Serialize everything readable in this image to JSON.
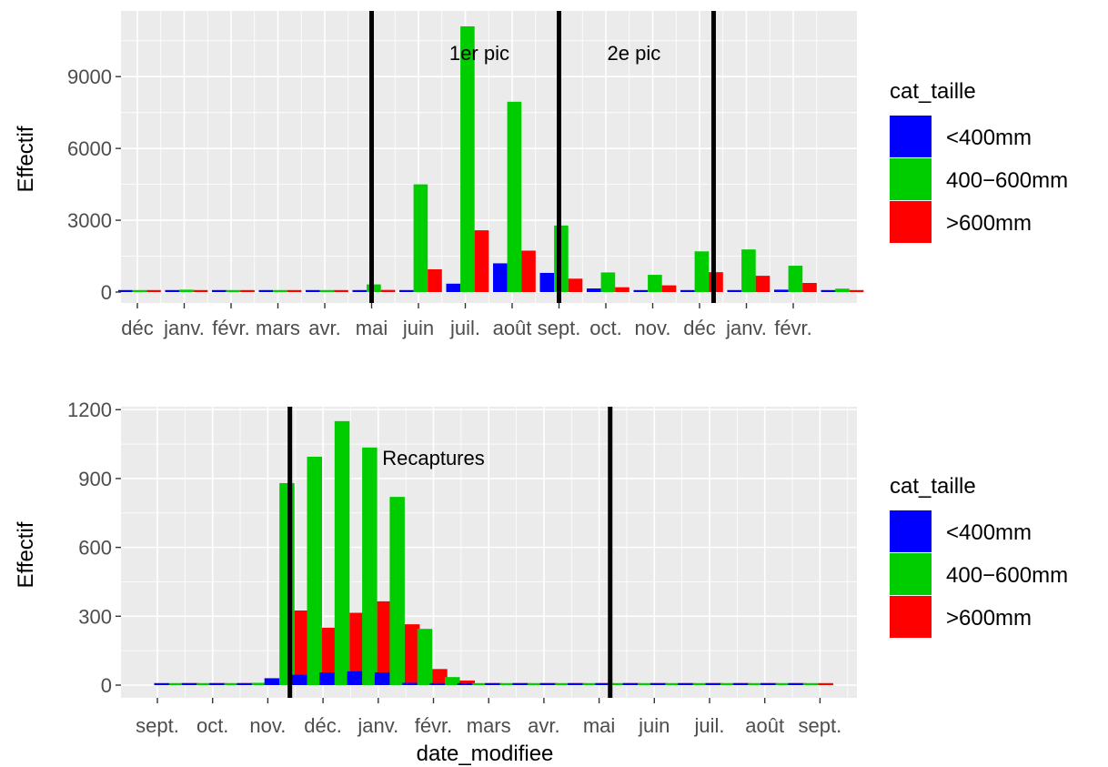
{
  "chart_data": [
    {
      "type": "bar",
      "ylabel": "Effectif",
      "xlabel": "",
      "ylim": [
        -300,
        11300
      ],
      "yticks": [
        0,
        3000,
        6000,
        9000
      ],
      "xtick_labels": [
        "déc",
        "janv.",
        "févr.",
        "mars",
        "avr.",
        "mai",
        "juin",
        "juil.",
        "août",
        "sept.",
        "oct.",
        "nov.",
        "déc",
        "janv.",
        "févr."
      ],
      "series": [
        {
          "name": "<400mm",
          "color": "#0000ff",
          "values": [
            0,
            0,
            0,
            0,
            0,
            0,
            0,
            350,
            1200,
            800,
            150,
            50,
            50,
            50,
            100,
            50
          ]
        },
        {
          "name": "400−600mm",
          "color": "#00cd00",
          "values": [
            30,
            100,
            30,
            30,
            30,
            320,
            4500,
            11100,
            7950,
            2780,
            820,
            720,
            1700,
            1780,
            1100,
            140
          ]
        },
        {
          "name": ">600mm",
          "color": "#ff0000",
          "values": [
            20,
            40,
            20,
            20,
            20,
            90,
            950,
            2580,
            1730,
            560,
            200,
            280,
            830,
            680,
            380,
            70
          ]
        }
      ],
      "vlines_month": [
        5.0,
        9.0,
        12.3
      ],
      "annotations": [
        {
          "text": "1er pic",
          "month": 7.3,
          "y": 10000
        },
        {
          "text": "2e pic",
          "month": 10.6,
          "y": 10000
        }
      ],
      "legend": {
        "title": "cat_taille",
        "position": "right"
      },
      "grid": true
    },
    {
      "type": "bar",
      "ylabel": "Effectif",
      "xlabel": "date_modifiee",
      "ylim": [
        -60,
        1200
      ],
      "yticks": [
        0,
        300,
        600,
        900,
        1200
      ],
      "xtick_labels": [
        "sept.",
        "oct.",
        "nov.",
        "déc.",
        "janv.",
        "févr.",
        "mars",
        "avr.",
        "mai",
        "juin",
        "juil.",
        "août",
        "sept."
      ],
      "series": [
        {
          "name": "<400mm",
          "color": "#0000ff",
          "values": [
            0,
            0,
            0,
            0,
            30,
            45,
            55,
            60,
            55,
            10,
            5,
            0,
            0,
            0,
            0,
            0,
            0,
            0,
            0,
            0,
            0,
            0,
            0,
            0
          ]
        },
        {
          "name": "400−600mm",
          "color": "#00cd00",
          "values": [
            0,
            0,
            0,
            10,
            880,
            995,
            1150,
            1035,
            820,
            245,
            35,
            0,
            0,
            0,
            0,
            0,
            0,
            0,
            0,
            0,
            0,
            0,
            0,
            0
          ]
        },
        {
          "name": ">600mm",
          "color": "#ff0000",
          "values": [
            0,
            0,
            0,
            5,
            325,
            250,
            315,
            365,
            265,
            70,
            20,
            0,
            0,
            0,
            0,
            0,
            0,
            0,
            0,
            0,
            0,
            0,
            0,
            0
          ]
        }
      ],
      "vlines_month": [
        2.4,
        8.2
      ],
      "annotations": [
        {
          "text": "Recaptures",
          "month": 5.0,
          "y": 990
        }
      ],
      "legend": {
        "title": "cat_taille",
        "position": "right"
      },
      "grid": true
    }
  ]
}
